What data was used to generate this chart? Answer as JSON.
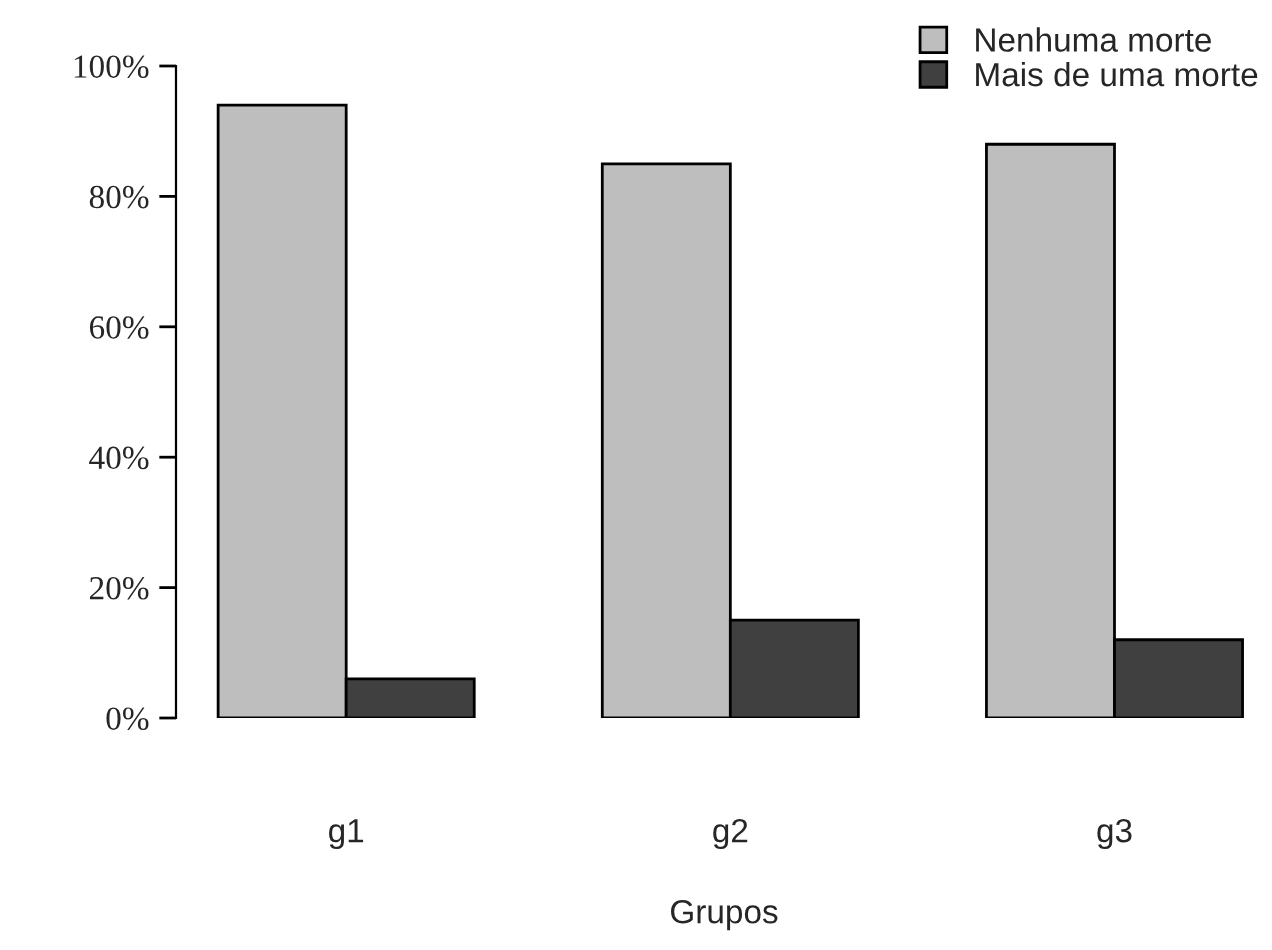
{
  "chart_data": {
    "type": "bar",
    "xlabel": "Grupos",
    "categories": [
      "g1",
      "g2",
      "g3"
    ],
    "series": [
      {
        "name": "Nenhuma morte",
        "color": "#bebebe",
        "values": [
          94,
          85,
          88
        ]
      },
      {
        "name": "Mais de uma morte",
        "color": "#404040",
        "values": [
          6,
          15,
          12
        ]
      }
    ],
    "ylim": [
      0,
      100
    ],
    "yticks": [
      {
        "value": 0,
        "label": "0%"
      },
      {
        "value": 20,
        "label": "20%"
      },
      {
        "value": 40,
        "label": "40%"
      },
      {
        "value": 60,
        "label": "60%"
      },
      {
        "value": 80,
        "label": "80%"
      },
      {
        "value": 100,
        "label": "100%"
      }
    ],
    "grid": false,
    "legend": "top right"
  }
}
